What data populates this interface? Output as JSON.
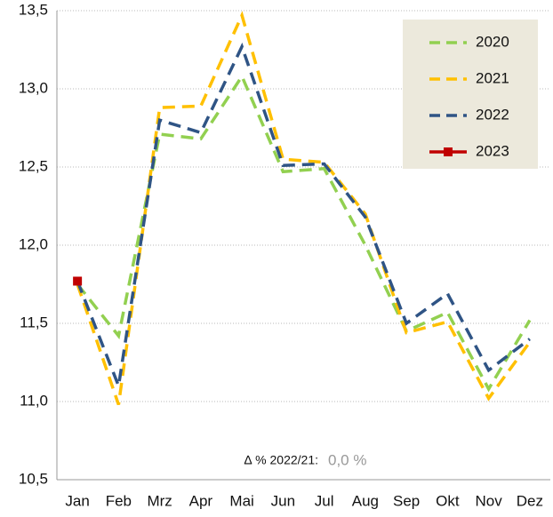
{
  "chart_data": {
    "type": "line",
    "categories": [
      "Jan",
      "Feb",
      "Mrz",
      "Apr",
      "Mai",
      "Jun",
      "Jul",
      "Aug",
      "Sep",
      "Okt",
      "Nov",
      "Dez"
    ],
    "series": [
      {
        "name": "2020",
        "color": "#92d050",
        "dashed": true,
        "values": [
          11.75,
          11.42,
          12.71,
          12.68,
          13.08,
          12.47,
          12.49,
          12.0,
          11.45,
          11.57,
          11.08,
          11.52
        ]
      },
      {
        "name": "2021",
        "color": "#ffc000",
        "dashed": true,
        "values": [
          11.75,
          10.98,
          12.88,
          12.89,
          13.47,
          12.55,
          12.53,
          12.2,
          11.44,
          11.51,
          11.02,
          11.38
        ]
      },
      {
        "name": "2022",
        "color": "#2f5485",
        "dashed": true,
        "values": [
          11.77,
          11.1,
          12.8,
          12.72,
          13.27,
          12.51,
          12.52,
          12.18,
          11.5,
          11.69,
          11.2,
          11.4
        ]
      },
      {
        "name": "2023",
        "color": "#c00000",
        "dashed": false,
        "marker": "square",
        "values": [
          11.77,
          null,
          null,
          null,
          null,
          null,
          null,
          null,
          null,
          null,
          null,
          null
        ]
      }
    ],
    "ylim": [
      10.5,
      13.5
    ],
    "yticks": [
      {
        "value": 10.5,
        "label": "10,5"
      },
      {
        "value": 11.0,
        "label": "11,0"
      },
      {
        "value": 11.5,
        "label": "11,5"
      },
      {
        "value": 12.0,
        "label": "12,0"
      },
      {
        "value": 12.5,
        "label": "12,5"
      },
      {
        "value": 13.0,
        "label": "13,0"
      },
      {
        "value": 13.5,
        "label": "13,5"
      }
    ],
    "grid": true,
    "legend": "top-right",
    "annotation": {
      "label": "∆ % 2022/21:",
      "value": "0,0 %"
    }
  }
}
